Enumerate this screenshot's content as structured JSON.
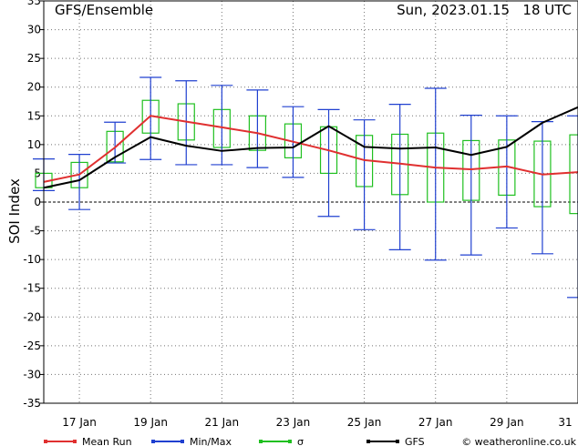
{
  "header": {
    "title": "GFS/Ensemble",
    "run_info": "Sun, 2023.01.15   18 UTC"
  },
  "chart_data": {
    "type": "line",
    "ylabel": "SOI Index",
    "ylim": [
      -35,
      35
    ],
    "yticks": [
      -35,
      -30,
      -25,
      -20,
      -15,
      -10,
      -5,
      0,
      5,
      10,
      15,
      20,
      25,
      30,
      35
    ],
    "xlim": [
      0,
      30
    ],
    "xticks": [
      {
        "x": 2,
        "label": "17 Jan"
      },
      {
        "x": 6,
        "label": "19 Jan"
      },
      {
        "x": 10,
        "label": "21 Jan"
      },
      {
        "x": 14,
        "label": "23 Jan"
      },
      {
        "x": 18,
        "label": "25 Jan"
      },
      {
        "x": 22,
        "label": "27 Jan"
      },
      {
        "x": 26,
        "label": "29 Jan"
      },
      {
        "x": 30,
        "label": "31"
      }
    ],
    "grid": true,
    "zero_line": true,
    "series": [
      {
        "name": "Mean Run",
        "color": "#e03030",
        "x": [
          0,
          2,
          4,
          6,
          8,
          10,
          12,
          14,
          16,
          18,
          20,
          22,
          24,
          26,
          28,
          30
        ],
        "values": [
          3.5,
          4.8,
          9.5,
          15.0,
          14.0,
          13.0,
          12.0,
          10.5,
          9.0,
          7.3,
          6.7,
          6.0,
          5.7,
          6.2,
          4.8,
          5.2
        ]
      },
      {
        "name": "GFS",
        "color": "#000000",
        "x": [
          0,
          2,
          4,
          6,
          8,
          10,
          12,
          14,
          16,
          18,
          20,
          22,
          24,
          26,
          28,
          30
        ],
        "values": [
          2.5,
          3.8,
          7.8,
          11.3,
          9.8,
          8.9,
          9.4,
          9.5,
          13.2,
          9.6,
          9.3,
          9.5,
          8.2,
          9.6,
          13.8,
          16.5
        ]
      }
    ],
    "minmax": {
      "name": "Min/Max",
      "color": "#2040d0",
      "x": [
        0,
        2,
        4,
        6,
        8,
        10,
        12,
        14,
        16,
        18,
        20,
        22,
        24,
        26,
        28,
        30
      ],
      "min": [
        2.0,
        -1.3,
        6.8,
        7.4,
        6.5,
        6.5,
        6.0,
        4.3,
        -2.5,
        -4.8,
        -8.3,
        -10.1,
        -9.2,
        -4.5,
        -9.0,
        -16.6
      ],
      "max": [
        7.5,
        8.3,
        13.9,
        21.7,
        21.1,
        20.3,
        19.5,
        16.6,
        16.1,
        14.3,
        17.0,
        19.8,
        15.1,
        15.0,
        14.0,
        15.0
      ]
    },
    "sigma": {
      "name": "σ",
      "color": "#20c020",
      "x": [
        0,
        2,
        4,
        6,
        8,
        10,
        12,
        14,
        16,
        18,
        20,
        22,
        24,
        26,
        28,
        30
      ],
      "low": [
        2.5,
        2.5,
        7.0,
        12.0,
        10.8,
        9.5,
        9.0,
        7.7,
        5.0,
        2.7,
        1.3,
        0.0,
        0.3,
        1.2,
        -0.8,
        -2.0
      ],
      "high": [
        5.0,
        6.9,
        12.3,
        17.7,
        17.1,
        16.1,
        15.0,
        13.6,
        13.1,
        11.6,
        11.8,
        12.0,
        10.7,
        10.8,
        10.6,
        11.7
      ]
    },
    "legend_position": "bottom"
  },
  "legend": {
    "items": [
      {
        "label": "Mean Run",
        "color": "#e03030"
      },
      {
        "label": "Min/Max",
        "color": "#2040d0"
      },
      {
        "label": "σ",
        "color": "#20c020"
      },
      {
        "label": "GFS",
        "color": "#000000"
      }
    ]
  },
  "footer": {
    "copyright": "© weatheronline.co.uk",
    "copyright_icon": "copyright-icon"
  }
}
